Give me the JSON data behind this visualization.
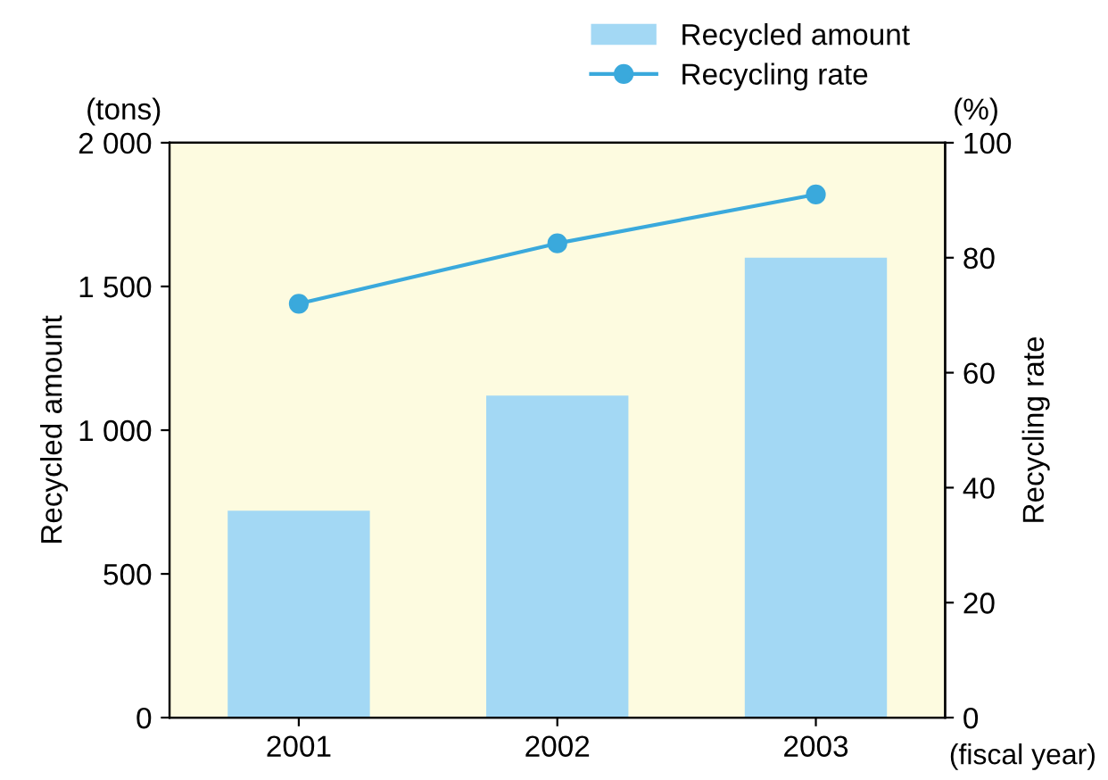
{
  "chart_data": {
    "type": "bar",
    "categories": [
      "2001",
      "2002",
      "2003"
    ],
    "series": [
      {
        "name": "Recycled amount",
        "color": "#a3d8f4",
        "values": [
          720,
          1120,
          1600
        ]
      },
      {
        "name": "Recycling rate",
        "type": "line",
        "axis": "y2",
        "color": "#3aa9dc",
        "values": [
          72,
          82.5,
          91
        ]
      }
    ],
    "ylabel": "Recycled amount",
    "y2label": "Recycling rate",
    "xlabel": "(fiscal year)",
    "annotations": [
      "(tons)",
      "(%)"
    ],
    "ylim": [
      0,
      2000
    ],
    "yticks": [
      0,
      500,
      {
        "value": 1000,
        "label": "1 000"
      },
      {
        "value": 1500,
        "label": "1 500"
      },
      {
        "value": 2000,
        "label": "2 000"
      }
    ],
    "y2lim": [
      0,
      100
    ],
    "y2ticks": [
      0,
      20,
      40,
      60,
      80,
      100
    ],
    "marker": "circle",
    "line_style": "solid",
    "legend": "top right",
    "grid": false
  }
}
